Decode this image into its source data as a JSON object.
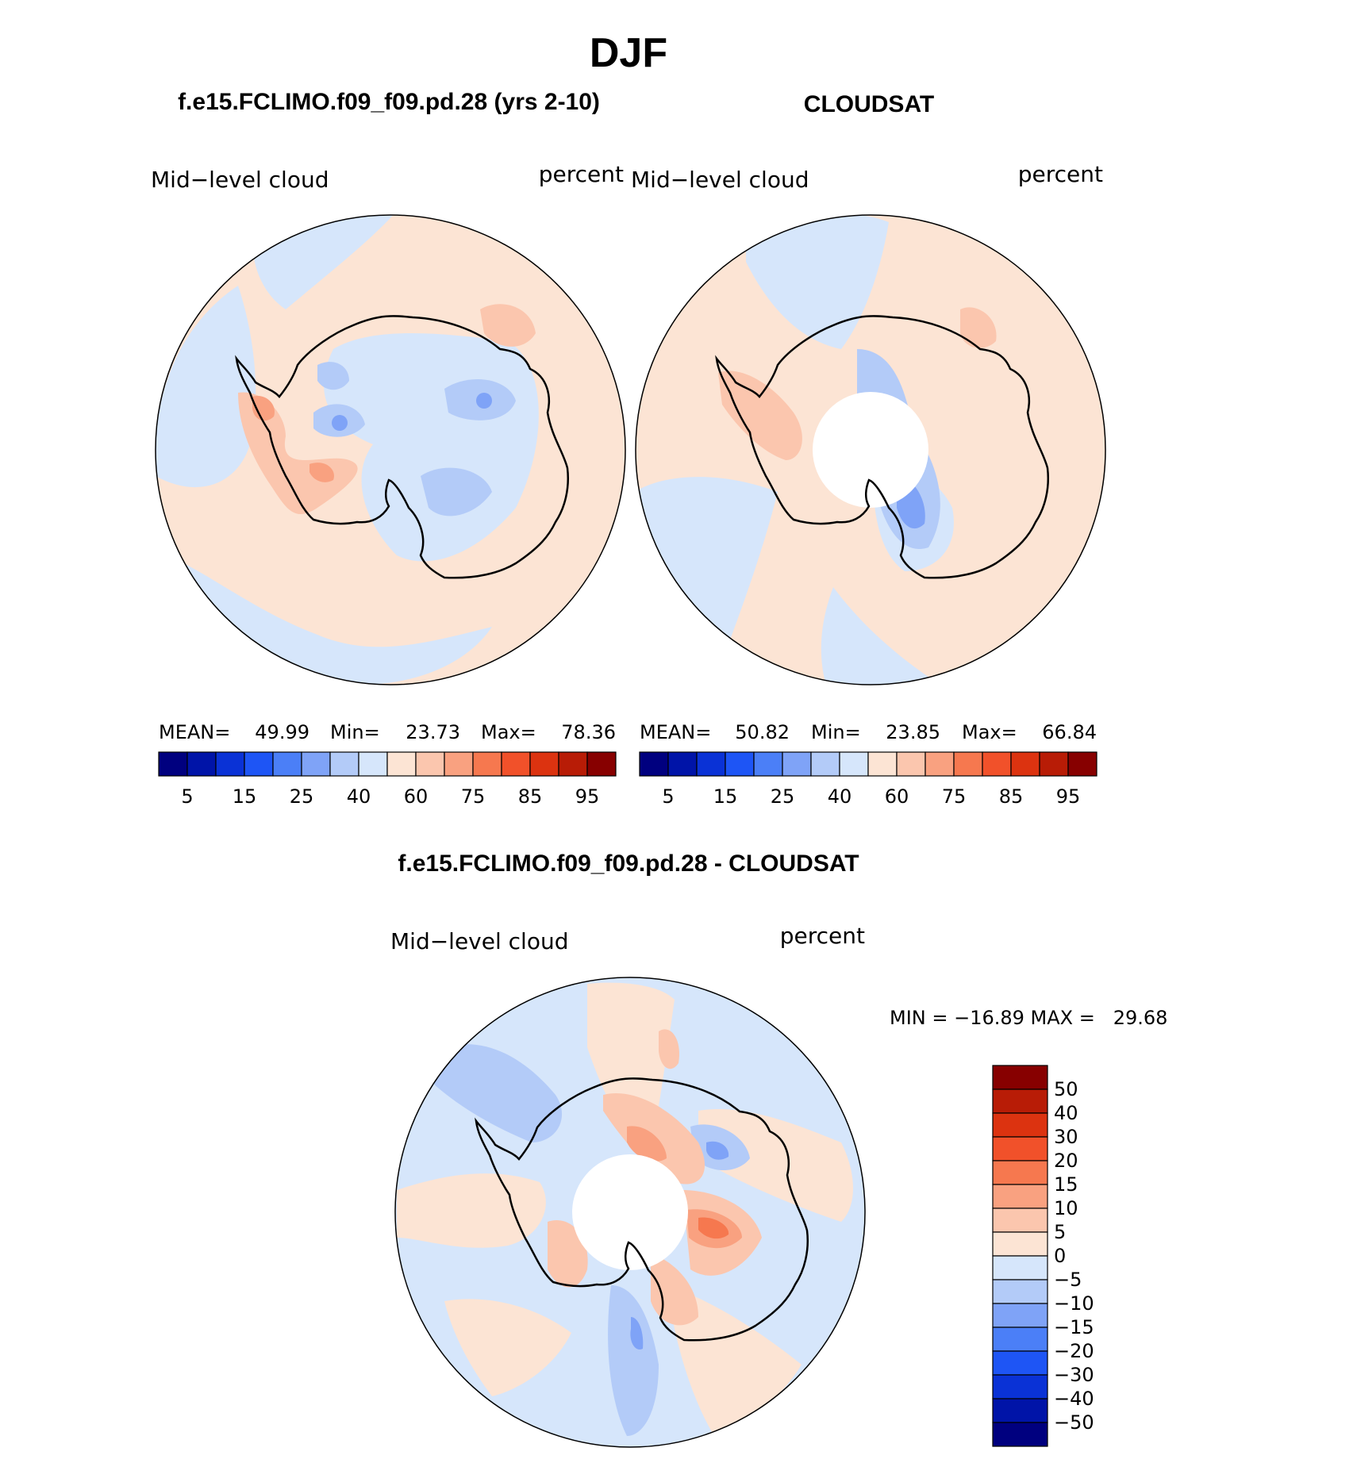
{
  "figure": {
    "title": "DJF",
    "model_title": "f.e15.FCLIMO.f09_f09.pd.28 (yrs 2-10)",
    "obs_title": "CLOUDSAT",
    "diff_title": "f.e15.FCLIMO.f09_f09.pd.28 - CLOUDSAT"
  },
  "colors": {
    "seq": [
      "#00007f",
      "#0014a8",
      "#0a32d6",
      "#1e55f5",
      "#4b7ff7",
      "#7fa3f7",
      "#b3cbf8",
      "#d6e6fb",
      "#fce4d4",
      "#fbc6ae",
      "#f9a180",
      "#f6784f",
      "#f1512a",
      "#dc3310",
      "#b81c06",
      "#870000"
    ],
    "diff": [
      "#00007f",
      "#0014a8",
      "#0a32d6",
      "#1e55f5",
      "#4b7ff7",
      "#7fa3f7",
      "#b3cbf8",
      "#d6e6fb",
      "#fce4d4",
      "#fbc6ae",
      "#f9a180",
      "#f6784f",
      "#f1512a",
      "#dc3310",
      "#b81c06",
      "#870000"
    ]
  },
  "panels": {
    "model": {
      "variable": "Mid−level cloud",
      "units": "percent",
      "mean_label": "MEAN=",
      "mean": "49.99",
      "min_label": "Min=",
      "min": "23.73",
      "max_label": "Max=",
      "max": "78.36",
      "colorbar_labels": [
        "5",
        "15",
        "25",
        "40",
        "60",
        "75",
        "85",
        "95"
      ]
    },
    "obs": {
      "variable": "Mid−level cloud",
      "units": "percent",
      "mean_label": "MEAN=",
      "mean": "50.82",
      "min_label": "Min=",
      "min": "23.85",
      "max_label": "Max=",
      "max": "66.84",
      "colorbar_labels": [
        "5",
        "15",
        "25",
        "40",
        "60",
        "75",
        "85",
        "95"
      ]
    },
    "diff": {
      "variable": "Mid−level cloud",
      "units": "percent",
      "minmax": "MIN = −16.89 MAX =   29.68",
      "colorbar_labels": [
        "50",
        "40",
        "30",
        "20",
        "15",
        "10",
        "5",
        "0",
        "−5",
        "−10",
        "−15",
        "−20",
        "−30",
        "−40",
        "−50"
      ]
    }
  }
}
